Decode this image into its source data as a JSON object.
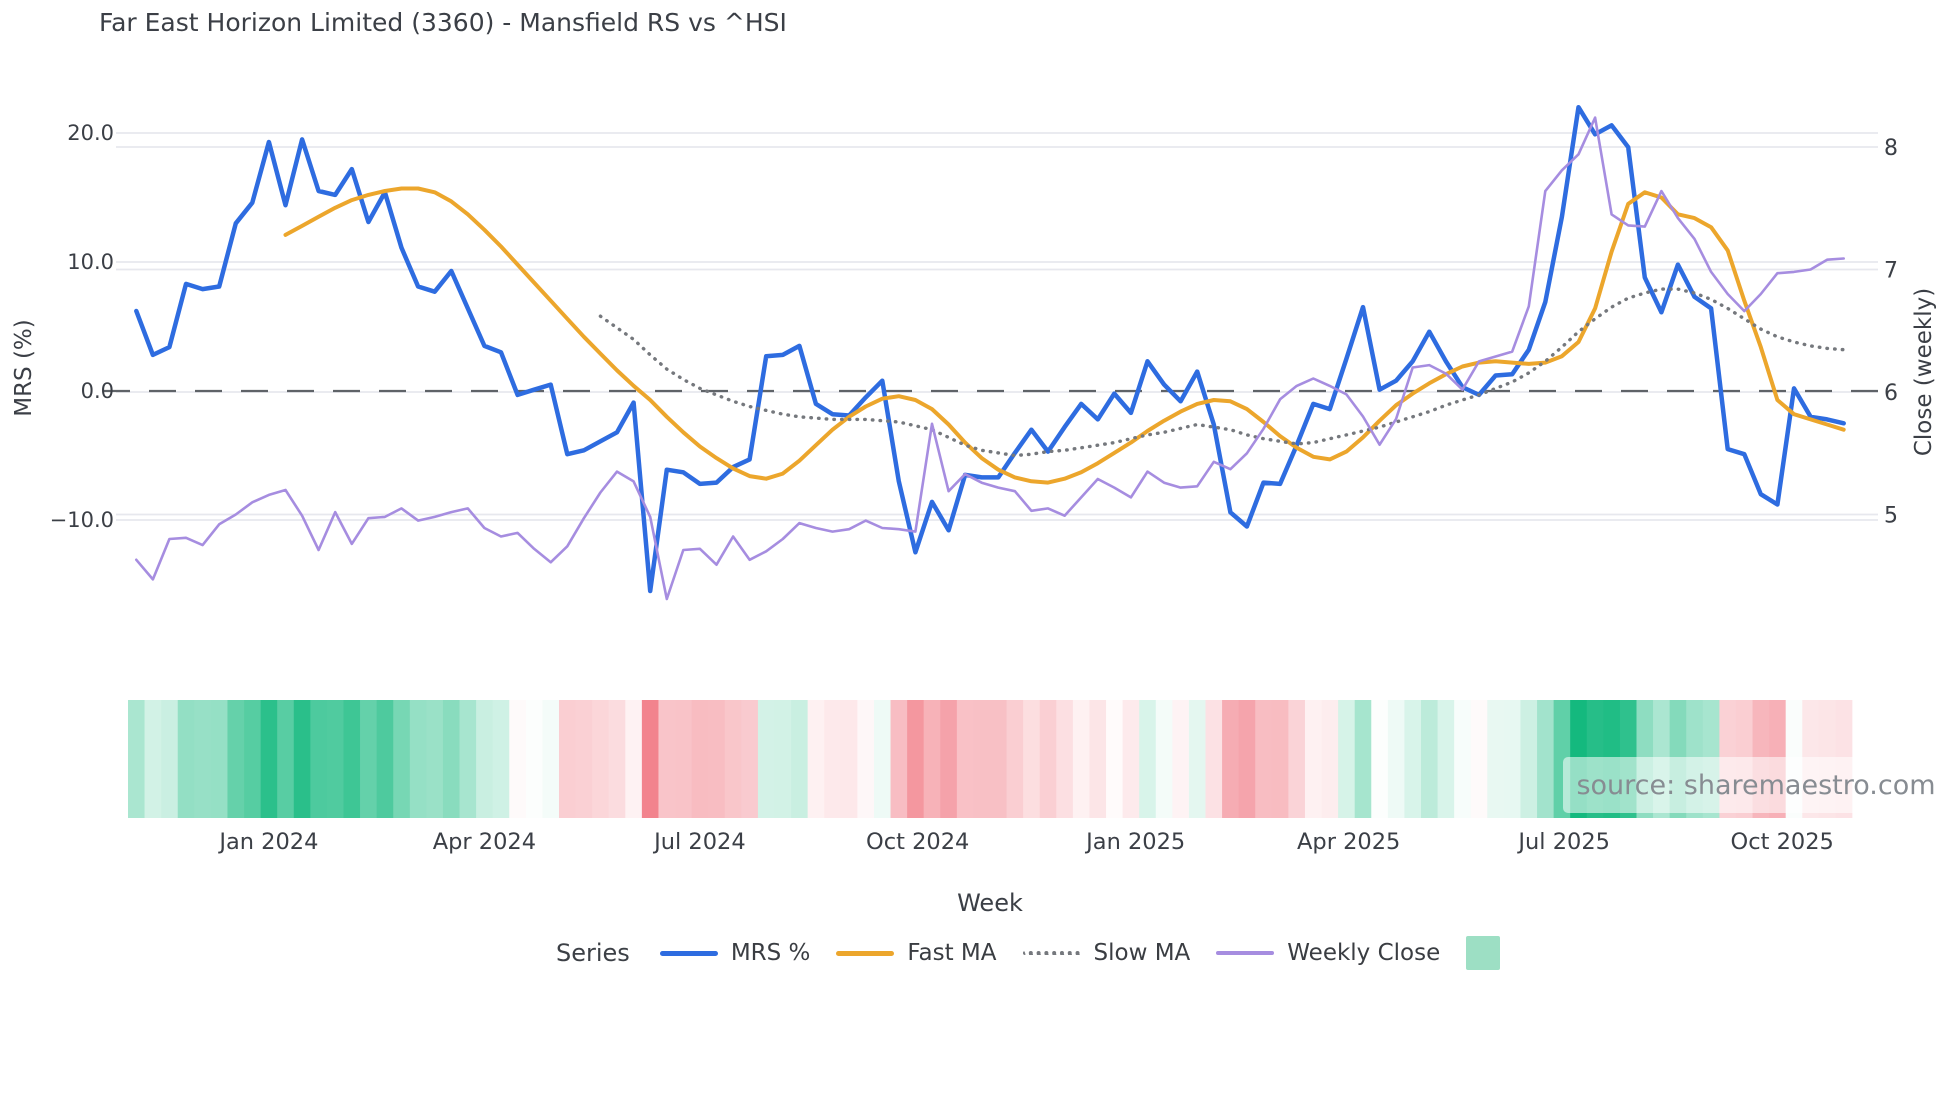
{
  "title": "Far East Horizon Limited (3360) - Mansfield RS vs ^HSI",
  "source_text": "source: sharemaestro.com",
  "axes": {
    "left": {
      "title": "MRS (%)",
      "ticks": [
        20.0,
        10.0,
        0.0,
        -10.0
      ],
      "tick_labels": [
        "20.0",
        "10.0",
        "0.0",
        "−10.0"
      ],
      "range": [
        -18.0,
        23.8
      ]
    },
    "right": {
      "title": "Close (weekly)",
      "ticks": [
        8,
        7,
        6,
        5
      ],
      "tick_labels": [
        "8",
        "7",
        "6",
        "5"
      ],
      "range": [
        4.22,
        8.42
      ]
    },
    "x": {
      "title": "Week",
      "tick_labels": [
        "Jan 2024",
        "Apr 2024",
        "Jul 2024",
        "Oct 2024",
        "Jan 2025",
        "Apr 2025",
        "Jul 2025",
        "Oct 2025"
      ],
      "tick_weeks": [
        8,
        21,
        34,
        47.14,
        60.29,
        73.14,
        86.14,
        99.29
      ]
    }
  },
  "legend": {
    "title": "Series",
    "items": [
      {
        "label": "MRS %",
        "color": "#2e6ce0",
        "style": "line"
      },
      {
        "label": "Fast MA",
        "color": "#eca62c",
        "style": "line"
      },
      {
        "label": "Slow MA",
        "color": "#75787d",
        "style": "dotted-line"
      },
      {
        "label": "Weekly Close",
        "color": "#a68de0",
        "style": "line"
      },
      {
        "label": "",
        "color": "#9ddfc4",
        "style": "square"
      }
    ]
  },
  "colors": {
    "grid": "#e7e8ee",
    "zero_line": "#5f6368",
    "tick_text": "#3b3f46",
    "heat_positive": "#14b97e",
    "heat_negative": "#f2838d",
    "background": "#ffffff"
  },
  "chart_data": {
    "type": "line",
    "x_unit": "week",
    "start_date": "2023-11-06",
    "n_weeks": 104,
    "grid": "horizontal",
    "zero_line_dashed": true,
    "legend_position": "bottom",
    "series": [
      {
        "name": "MRS %",
        "axis": "left",
        "color": "#2e6ce0",
        "width": 4.5,
        "dash": null,
        "values": [
          6.2,
          2.8,
          3.4,
          8.3,
          7.9,
          8.1,
          13.0,
          14.6,
          19.3,
          14.4,
          19.5,
          15.5,
          15.2,
          17.2,
          13.1,
          15.4,
          11.1,
          8.1,
          7.7,
          9.3,
          6.4,
          3.5,
          3.0,
          -0.3,
          0.1,
          0.5,
          -4.9,
          -4.6,
          -3.9,
          -3.2,
          -0.9,
          -15.5,
          -6.1,
          -6.3,
          -7.2,
          -7.1,
          -5.9,
          -5.3,
          2.7,
          2.8,
          3.5,
          -1.0,
          -1.8,
          -1.9,
          -0.5,
          0.8,
          -7.0,
          -12.5,
          -8.6,
          -10.8,
          -6.5,
          -6.7,
          -6.7,
          -4.8,
          -3.0,
          -4.7,
          -2.8,
          -1.0,
          -2.2,
          -0.2,
          -1.7,
          2.3,
          0.5,
          -0.8,
          1.5,
          -2.6,
          -9.4,
          -10.5,
          -7.1,
          -7.2,
          -4.2,
          -1.0,
          -1.4,
          2.5,
          6.5,
          0.1,
          0.8,
          2.3,
          4.6,
          2.3,
          0.3,
          -0.3,
          1.2,
          1.3,
          3.2,
          6.9,
          13.5,
          22.0,
          19.9,
          20.6,
          18.9,
          8.8,
          6.1,
          9.8,
          7.3,
          6.4,
          -4.5,
          -4.9,
          -8.0,
          -8.8,
          0.2,
          -2.0,
          -2.2,
          -2.5
        ]
      },
      {
        "name": "Fast MA",
        "axis": "left",
        "color": "#eca62c",
        "width": 4.0,
        "dash": null,
        "values": [
          null,
          null,
          null,
          null,
          null,
          null,
          null,
          null,
          null,
          12.1,
          12.8,
          13.5,
          14.2,
          14.8,
          15.2,
          15.5,
          15.7,
          15.7,
          15.4,
          14.7,
          13.7,
          12.5,
          11.2,
          9.8,
          8.4,
          7.0,
          5.6,
          4.2,
          2.9,
          1.6,
          0.4,
          -0.7,
          -2.0,
          -3.2,
          -4.3,
          -5.2,
          -6.0,
          -6.6,
          -6.8,
          -6.4,
          -5.4,
          -4.2,
          -3.0,
          -2.0,
          -1.2,
          -0.6,
          -0.4,
          -0.7,
          -1.4,
          -2.6,
          -4.0,
          -5.2,
          -6.1,
          -6.7,
          -7.0,
          -7.1,
          -6.8,
          -6.3,
          -5.6,
          -4.8,
          -4.0,
          -3.1,
          -2.3,
          -1.6,
          -1.0,
          -0.7,
          -0.8,
          -1.4,
          -2.4,
          -3.5,
          -4.4,
          -5.1,
          -5.3,
          -4.7,
          -3.6,
          -2.3,
          -1.1,
          -0.2,
          0.6,
          1.3,
          1.9,
          2.2,
          2.3,
          2.2,
          2.1,
          2.2,
          2.7,
          3.8,
          6.4,
          10.8,
          14.5,
          15.4,
          15.0,
          13.7,
          13.4,
          12.7,
          10.9,
          7.0,
          3.4,
          -0.7,
          -1.8,
          -2.2,
          -2.6,
          -3.0
        ]
      },
      {
        "name": "Slow MA",
        "axis": "left",
        "color": "#75787d",
        "width": 3.4,
        "dash": "dotted",
        "values": [
          null,
          null,
          null,
          null,
          null,
          null,
          null,
          null,
          null,
          null,
          null,
          null,
          null,
          null,
          null,
          null,
          null,
          null,
          null,
          null,
          null,
          null,
          null,
          null,
          null,
          null,
          null,
          null,
          5.8,
          4.9,
          4.0,
          2.8,
          1.7,
          0.9,
          0.2,
          -0.3,
          -0.8,
          -1.2,
          -1.5,
          -1.8,
          -2.0,
          -2.1,
          -2.2,
          -2.2,
          -2.2,
          -2.3,
          -2.4,
          -2.7,
          -3.0,
          -3.6,
          -4.2,
          -4.6,
          -4.8,
          -5.0,
          -4.9,
          -4.7,
          -4.6,
          -4.4,
          -4.2,
          -4.0,
          -3.7,
          -3.4,
          -3.2,
          -2.9,
          -2.6,
          -2.8,
          -3.0,
          -3.4,
          -3.7,
          -3.9,
          -4.1,
          -4.0,
          -3.7,
          -3.4,
          -3.1,
          -2.8,
          -2.4,
          -2.0,
          -1.6,
          -1.1,
          -0.7,
          -0.3,
          0.2,
          0.7,
          1.4,
          2.3,
          3.4,
          4.6,
          5.6,
          6.5,
          7.2,
          7.6,
          7.9,
          7.9,
          7.6,
          7.1,
          6.4,
          5.6,
          4.8,
          4.2,
          3.8,
          3.5,
          3.3,
          3.2
        ]
      },
      {
        "name": "Weekly Close",
        "axis": "right",
        "color": "#a68de0",
        "width": 2.6,
        "dash": null,
        "values": [
          4.63,
          4.47,
          4.8,
          4.81,
          4.75,
          4.92,
          5.0,
          5.1,
          5.16,
          5.2,
          4.99,
          4.71,
          5.02,
          4.76,
          4.97,
          4.98,
          5.05,
          4.95,
          4.98,
          5.02,
          5.05,
          4.89,
          4.82,
          4.85,
          4.72,
          4.61,
          4.74,
          4.97,
          5.18,
          5.35,
          5.27,
          4.98,
          4.31,
          4.71,
          4.72,
          4.59,
          4.82,
          4.63,
          4.7,
          4.8,
          4.93,
          4.89,
          4.86,
          4.88,
          4.95,
          4.89,
          4.88,
          4.86,
          5.74,
          5.19,
          5.33,
          5.26,
          5.22,
          5.19,
          5.03,
          5.05,
          4.99,
          5.14,
          5.29,
          5.22,
          5.14,
          5.35,
          5.26,
          5.22,
          5.23,
          5.43,
          5.37,
          5.5,
          5.7,
          5.94,
          6.05,
          6.11,
          6.05,
          5.98,
          5.8,
          5.57,
          5.78,
          6.2,
          6.22,
          6.15,
          6.02,
          6.25,
          6.29,
          6.33,
          6.7,
          7.64,
          7.81,
          7.94,
          8.24,
          7.45,
          7.36,
          7.35,
          7.64,
          7.42,
          7.25,
          6.98,
          6.8,
          6.66,
          6.8,
          6.97,
          6.98,
          7.0,
          7.08,
          7.09
        ]
      }
    ],
    "heatmap_strip": {
      "based_on": "MRS %",
      "description": "weekly cells colored green for positive MRS, red for negative MRS, intensity by magnitude",
      "positive_color": "#14b97e",
      "negative_color": "#f2838d",
      "max_positive": 22.0,
      "max_negative": -15.5
    }
  }
}
